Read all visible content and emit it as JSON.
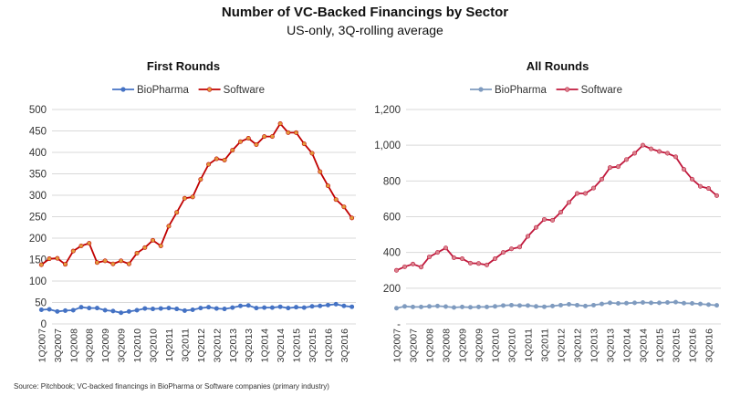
{
  "title": "Number of VC-Backed Financings by Sector",
  "subtitle": "US-only, 3Q-rolling average",
  "source": "Source:  Pitchbook; VC-backed financings in BioPharma or Software companies (primary industry)",
  "chart_data": [
    {
      "type": "line",
      "title": "First Rounds",
      "xlabel": "",
      "ylabel": "",
      "ylim": [
        0,
        500
      ],
      "yticks": [
        "0",
        "50",
        "100",
        "150",
        "200",
        "250",
        "300",
        "350",
        "400",
        "450",
        "500"
      ],
      "grid": true,
      "legend": "top",
      "x": [
        "1Q2007",
        "2Q2007",
        "3Q2007",
        "4Q2007",
        "1Q2008",
        "2Q2008",
        "3Q2008",
        "4Q2008",
        "1Q2009",
        "2Q2009",
        "3Q2009",
        "4Q2009",
        "1Q2010",
        "2Q2010",
        "3Q2010",
        "4Q2010",
        "1Q2011",
        "2Q2011",
        "3Q2011",
        "4Q2011",
        "1Q2012",
        "2Q2012",
        "3Q2012",
        "4Q2012",
        "1Q2013",
        "2Q2013",
        "3Q2013",
        "4Q2013",
        "1Q2014",
        "2Q2014",
        "3Q2014",
        "4Q2014",
        "1Q2015",
        "2Q2015",
        "3Q2015",
        "4Q2015",
        "1Q2016",
        "2Q2016",
        "3Q2016",
        "4Q2016"
      ],
      "xtick_labels": [
        "1Q2007",
        "3Q2007",
        "1Q2008",
        "3Q2008",
        "1Q2009",
        "3Q2009",
        "1Q2010",
        "3Q2010",
        "1Q2011",
        "3Q2011",
        "1Q2012",
        "3Q2012",
        "1Q2013",
        "3Q2013",
        "1Q2014",
        "3Q2014",
        "1Q2015",
        "3Q2015",
        "1Q2016",
        "3Q2016"
      ],
      "series": [
        {
          "name": "BioPharma",
          "color": "#4472c4",
          "marker": "#4472c4",
          "values": [
            33,
            34,
            29,
            31,
            32,
            39,
            37,
            37,
            32,
            30,
            26,
            29,
            32,
            36,
            35,
            36,
            37,
            35,
            31,
            33,
            37,
            39,
            36,
            35,
            38,
            42,
            43,
            37,
            38,
            38,
            40,
            37,
            39,
            38,
            41,
            42,
            44,
            46,
            42,
            40
          ]
        },
        {
          "name": "Software",
          "color": "#c00000",
          "marker": "#e39b3c",
          "values": [
            138,
            152,
            153,
            139,
            170,
            182,
            188,
            143,
            147,
            140,
            147,
            140,
            165,
            178,
            195,
            182,
            228,
            260,
            293,
            296,
            337,
            372,
            385,
            382,
            405,
            425,
            433,
            418,
            437,
            437,
            467,
            446,
            446,
            420,
            398,
            355,
            322,
            290,
            273,
            247
          ]
        }
      ]
    },
    {
      "type": "line",
      "title": "All Rounds",
      "xlabel": "",
      "ylabel": "",
      "ylim": [
        0,
        1200
      ],
      "yticks": [
        "-",
        "200",
        "400",
        "600",
        "800",
        "1,000",
        "1,200"
      ],
      "grid": true,
      "legend": "top",
      "x": [
        "1Q2007",
        "2Q2007",
        "3Q2007",
        "4Q2007",
        "1Q2008",
        "2Q2008",
        "3Q2008",
        "4Q2008",
        "1Q2009",
        "2Q2009",
        "3Q2009",
        "4Q2009",
        "1Q2010",
        "2Q2010",
        "3Q2010",
        "4Q2010",
        "1Q2011",
        "2Q2011",
        "3Q2011",
        "4Q2011",
        "1Q2012",
        "2Q2012",
        "3Q2012",
        "4Q2012",
        "1Q2013",
        "2Q2013",
        "3Q2013",
        "4Q2013",
        "1Q2014",
        "2Q2014",
        "3Q2014",
        "4Q2014",
        "1Q2015",
        "2Q2015",
        "3Q2015",
        "4Q2015",
        "1Q2016",
        "2Q2016",
        "3Q2016",
        "4Q2016"
      ],
      "xtick_labels": [
        "1Q2007",
        "3Q2007",
        "1Q2008",
        "3Q2008",
        "1Q2009",
        "3Q2009",
        "1Q2010",
        "3Q2010",
        "1Q2011",
        "3Q2011",
        "1Q2012",
        "3Q2012",
        "1Q2013",
        "3Q2013",
        "1Q2014",
        "3Q2014",
        "1Q2015",
        "3Q2015",
        "1Q2016",
        "3Q2016"
      ],
      "series": [
        {
          "name": "BioPharma",
          "color": "#7f9bbf",
          "marker": "#7f9bbf",
          "values": [
            88,
            98,
            95,
            95,
            98,
            100,
            97,
            92,
            95,
            93,
            95,
            95,
            98,
            103,
            105,
            103,
            103,
            98,
            96,
            100,
            105,
            110,
            105,
            100,
            105,
            112,
            118,
            115,
            116,
            118,
            120,
            118,
            118,
            120,
            122,
            116,
            115,
            112,
            108,
            104
          ]
        },
        {
          "name": "Software",
          "color": "#c0183c",
          "marker": "#d9848e",
          "values": [
            300,
            320,
            335,
            318,
            375,
            400,
            425,
            370,
            365,
            340,
            338,
            330,
            365,
            400,
            420,
            430,
            490,
            540,
            585,
            580,
            625,
            680,
            730,
            730,
            760,
            810,
            875,
            880,
            920,
            955,
            1000,
            980,
            965,
            955,
            935,
            865,
            810,
            770,
            758,
            718
          ]
        }
      ]
    }
  ]
}
